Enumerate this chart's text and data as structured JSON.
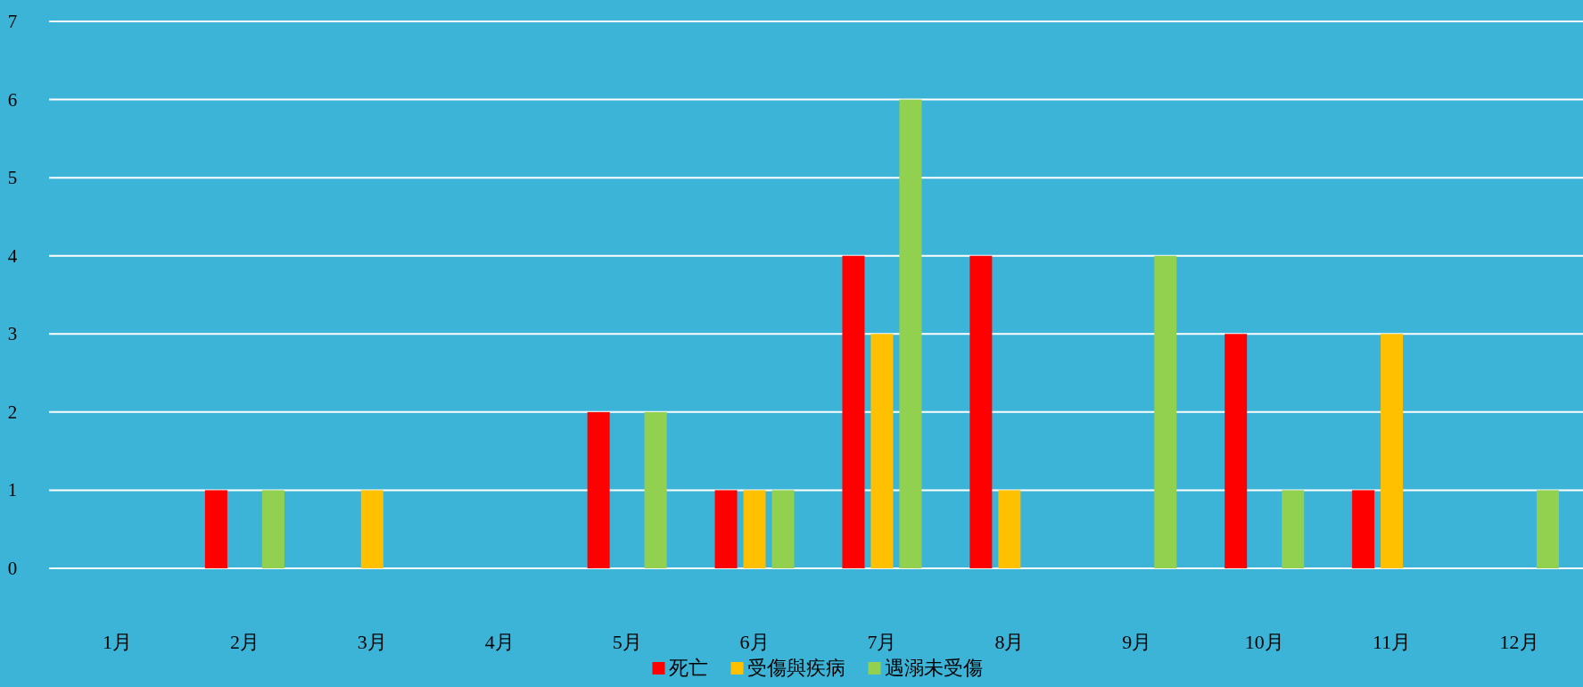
{
  "chart_data": {
    "type": "bar",
    "categories": [
      "1月",
      "2月",
      "3月",
      "4月",
      "5月",
      "6月",
      "7月",
      "8月",
      "9月",
      "10月",
      "11月",
      "12月"
    ],
    "series": [
      {
        "name": "死亡",
        "color": "#ff0000",
        "values": [
          0,
          1,
          0,
          0,
          2,
          1,
          4,
          4,
          0,
          3,
          1,
          0
        ]
      },
      {
        "name": "受傷與疾病",
        "color": "#ffc000",
        "values": [
          0,
          0,
          1,
          0,
          0,
          1,
          3,
          1,
          0,
          0,
          3,
          0
        ]
      },
      {
        "name": "遇溺未受傷",
        "color": "#92d050",
        "values": [
          0,
          1,
          0,
          0,
          2,
          1,
          6,
          0,
          4,
          1,
          0,
          1
        ]
      }
    ],
    "ylim": [
      0,
      7
    ],
    "yticks": [
      0,
      1,
      2,
      3,
      4,
      5,
      6,
      7
    ],
    "grid": "y",
    "legend": "bottom"
  }
}
